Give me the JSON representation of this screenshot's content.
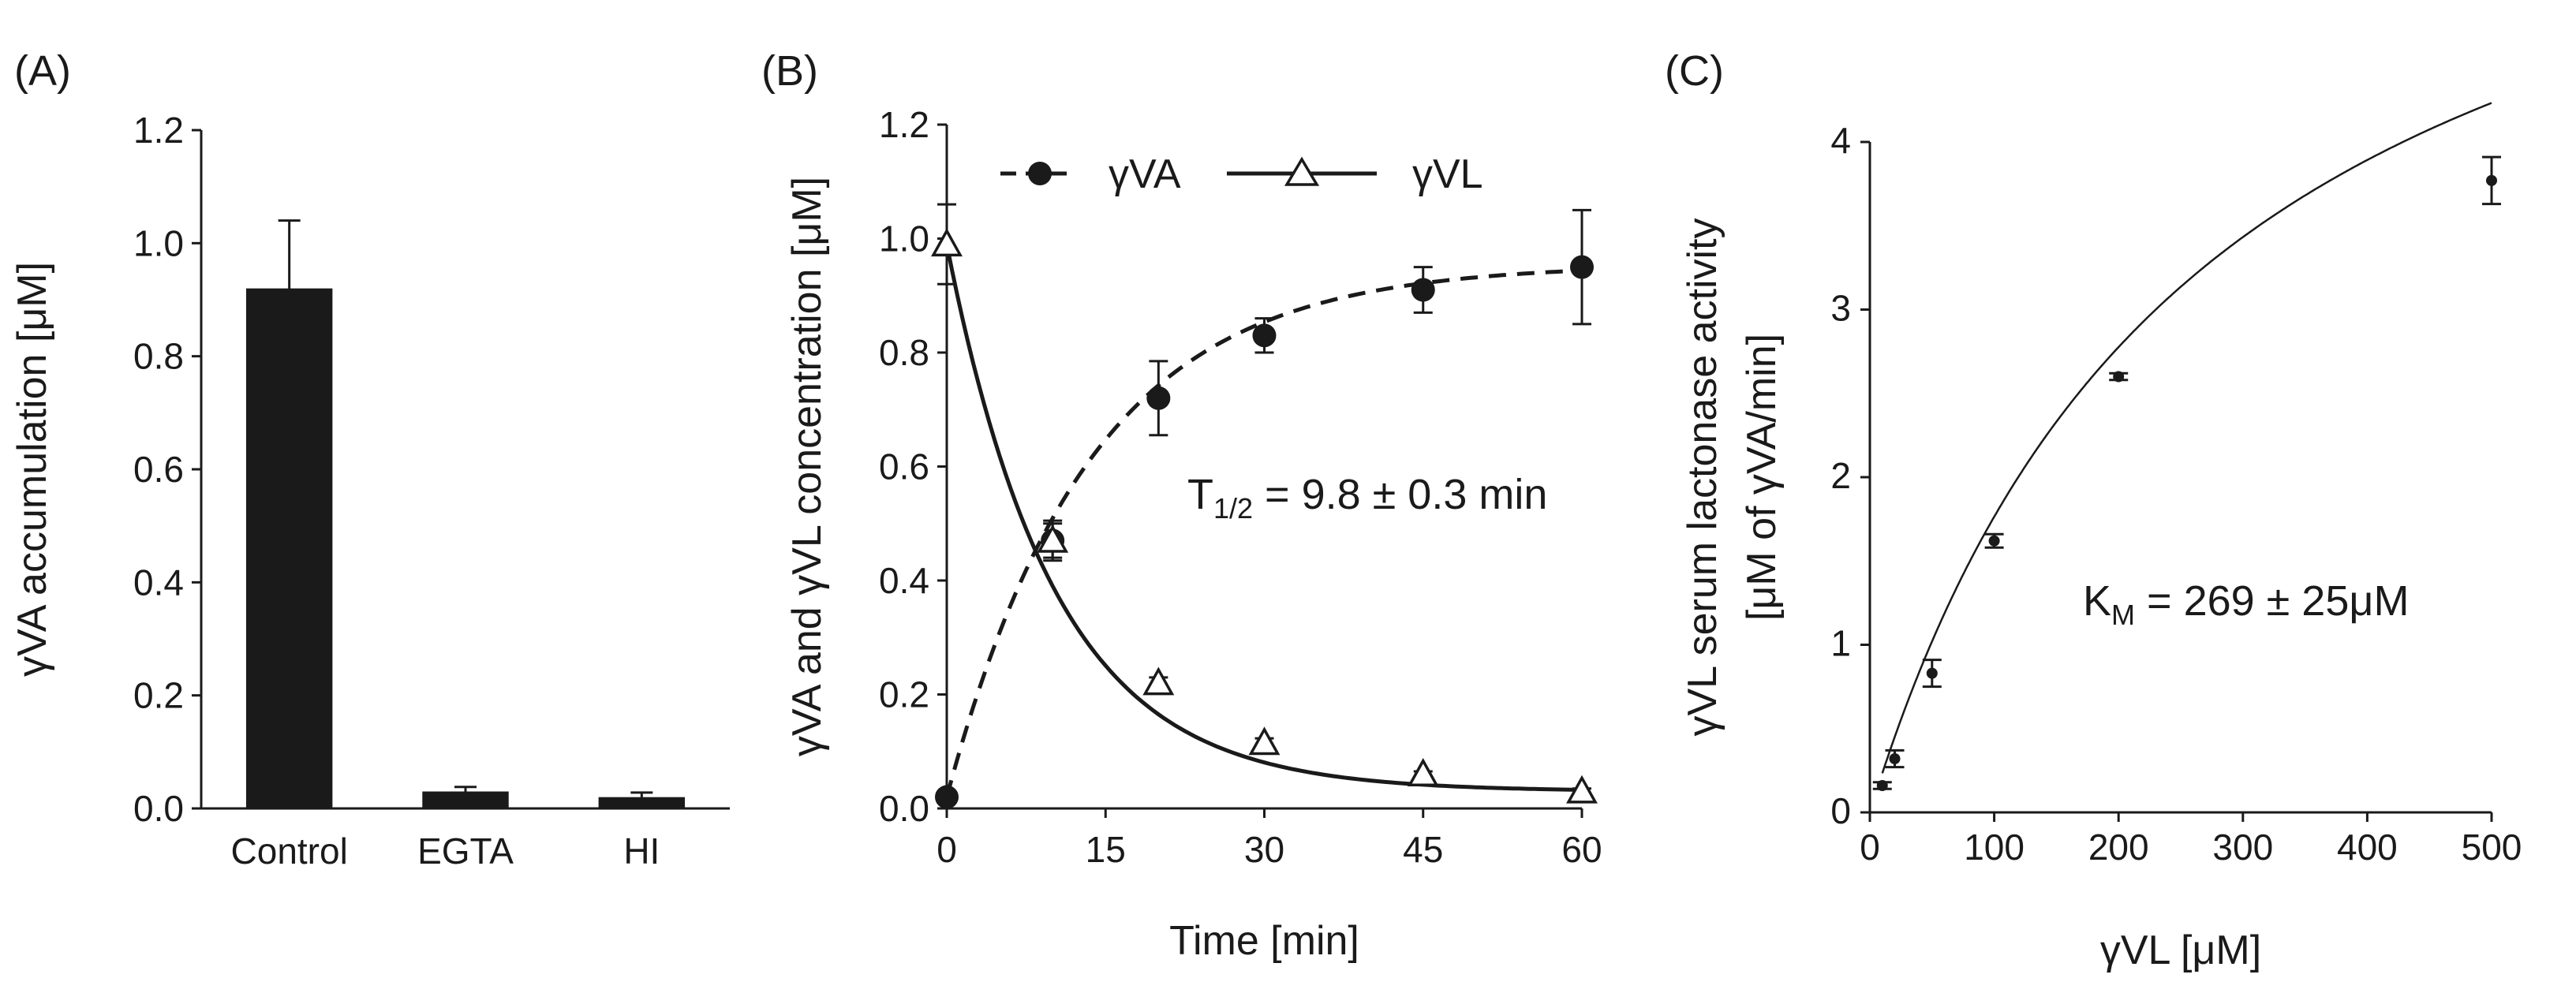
{
  "chart_data": [
    {
      "panel": "(A)",
      "type": "bar",
      "title": "",
      "xlabel": "",
      "ylabel": "γVA accumulation [μM]",
      "ylim": [
        0,
        1.2
      ],
      "yticks": [
        "0.0",
        "0.2",
        "0.4",
        "0.6",
        "0.8",
        "1.0",
        "1.2"
      ],
      "categories": [
        "Control",
        "EGTA",
        "HI"
      ],
      "values": [
        0.92,
        0.03,
        0.02
      ],
      "errors": [
        0.12,
        0.008,
        0.008
      ],
      "bar_color": "#1a1a1a"
    },
    {
      "panel": "(B)",
      "type": "line",
      "xlabel": "Time [min]",
      "ylabel": "γVA and γVL concentration [μM]",
      "xlim": [
        0,
        60
      ],
      "ylim": [
        0,
        1.2
      ],
      "xticks": [
        "0",
        "15",
        "30",
        "45",
        "60"
      ],
      "yticks": [
        "0.0",
        "0.2",
        "0.4",
        "0.6",
        "0.8",
        "1.0",
        "1.2"
      ],
      "annotation": {
        "main": "T",
        "sub": "1/2",
        "rest": " = 9.8 ± 0.3 min"
      },
      "legend": [
        "γVA",
        "γVL"
      ],
      "series": [
        {
          "name": "γVA",
          "style": "dashed",
          "marker": "filled-circle",
          "x": [
            0,
            10,
            20,
            30,
            45,
            60
          ],
          "y": [
            0.02,
            0.47,
            0.72,
            0.83,
            0.91,
            0.95
          ],
          "err": [
            0.01,
            0.03,
            0.065,
            0.03,
            0.04,
            0.1
          ]
        },
        {
          "name": "γVL",
          "style": "solid",
          "marker": "open-triangle",
          "x": [
            0,
            10,
            20,
            30,
            45,
            60
          ],
          "y": [
            0.99,
            0.47,
            0.22,
            0.115,
            0.06,
            0.03
          ],
          "err": [
            0.07,
            0.035,
            0.01,
            0.008,
            0.005,
            0.005
          ]
        }
      ]
    },
    {
      "panel": "(C)",
      "type": "scatter",
      "xlabel": "γVL [μM]",
      "ylabel_line1": "γVL serum lactonase activity",
      "ylabel_line2": "[μM of γVA/min]",
      "xlim": [
        0,
        500
      ],
      "ylim": [
        0,
        4
      ],
      "xticks": [
        "0",
        "100",
        "200",
        "300",
        "400",
        "500"
      ],
      "yticks": [
        "0",
        "1",
        "2",
        "3",
        "4"
      ],
      "annotation": {
        "main": "K",
        "sub": "M",
        "rest": " = 269 ± 25μM"
      },
      "fit": {
        "model": "Michaelis-Menten",
        "vmax": 6.51,
        "km": 269
      },
      "series": [
        {
          "name": "data",
          "x": [
            10,
            20,
            50,
            100,
            200,
            500
          ],
          "y": [
            0.16,
            0.32,
            0.83,
            1.62,
            2.6,
            3.77
          ],
          "err": [
            0.02,
            0.05,
            0.08,
            0.04,
            0.02,
            0.14
          ]
        }
      ]
    }
  ]
}
